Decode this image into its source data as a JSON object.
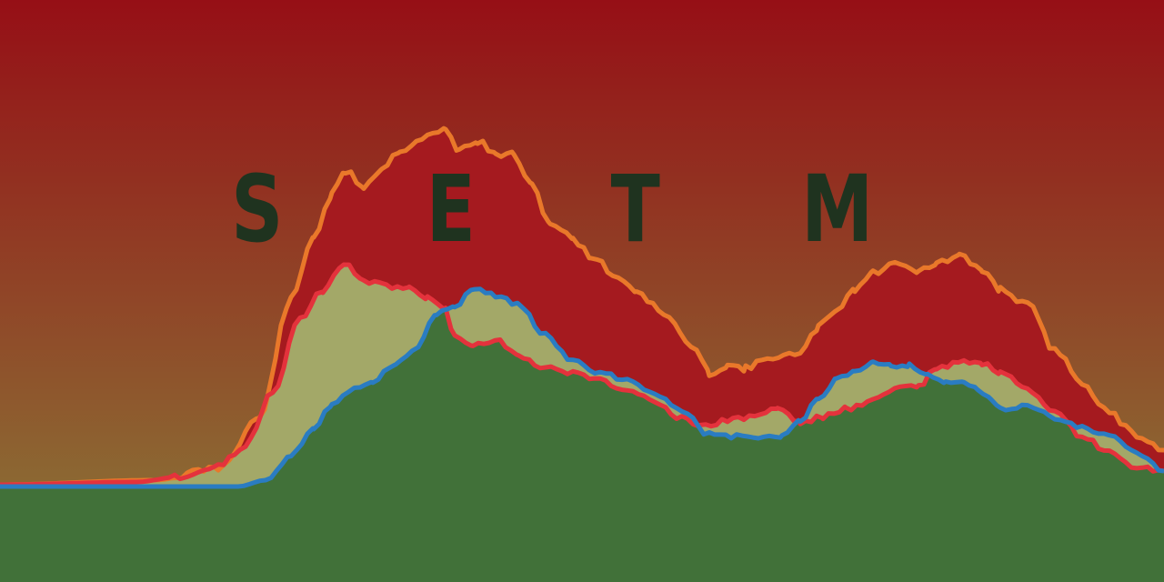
{
  "title": {
    "letters": [
      "S",
      "E",
      "T",
      "M"
    ]
  },
  "colors": {
    "sky_top": "#960f16",
    "sky_bottom": "#8a7a38",
    "band_red": "#a51a1f",
    "band_khaki": "#a3a868",
    "ground_green": "#417139",
    "line_orange": "#e9782a",
    "line_red": "#e4323c",
    "line_blue": "#2a7cc2",
    "title_text": "#1f331f"
  }
}
